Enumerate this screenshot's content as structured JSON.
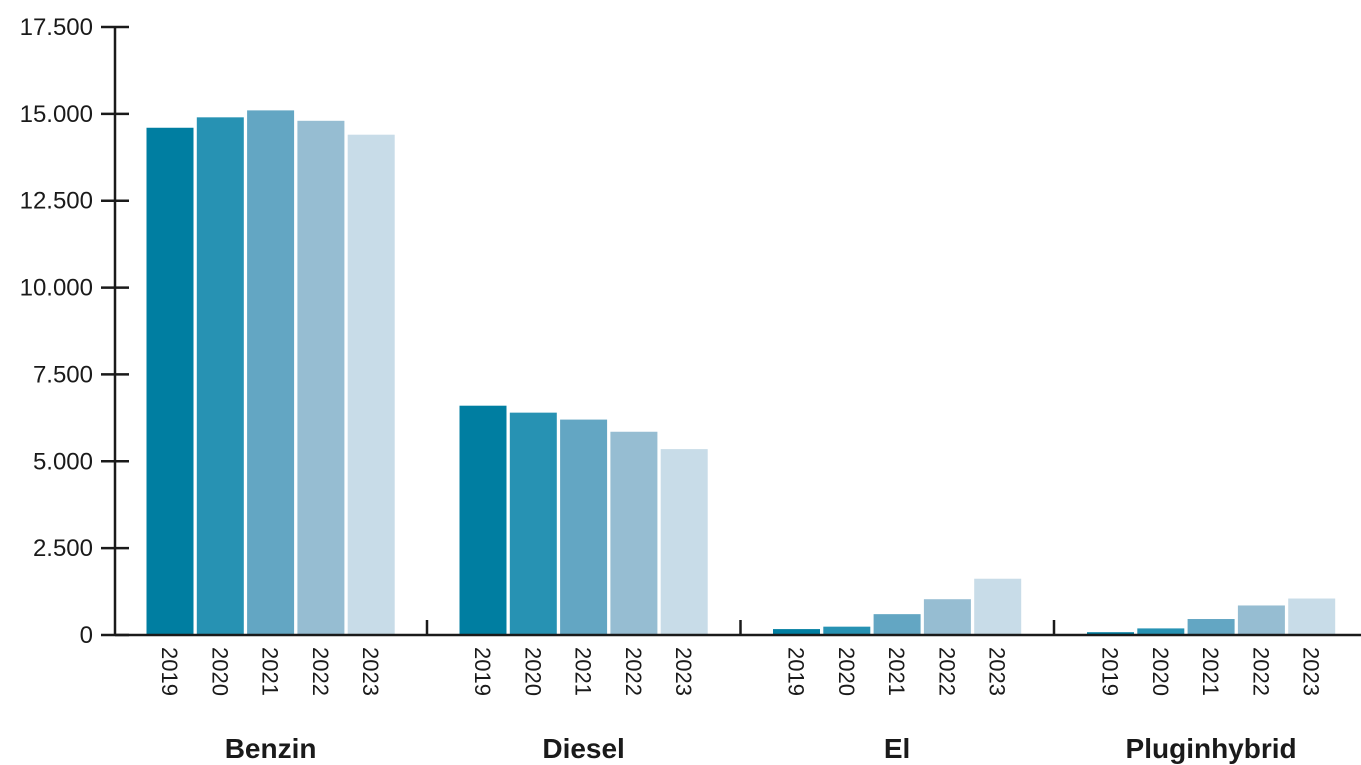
{
  "chart_data": {
    "type": "bar",
    "title": "",
    "xlabel": "",
    "ylabel": "",
    "ylim": [
      0,
      17500
    ],
    "yticks": [
      0,
      2500,
      5000,
      7500,
      10000,
      12500,
      15000,
      17500
    ],
    "ytick_labels": [
      "0",
      "2.500",
      "5.000",
      "7.500",
      "10.000",
      "12.500",
      "15.000",
      "17.500"
    ],
    "grid": false,
    "legend": "none",
    "categories": [
      "Benzin",
      "Diesel",
      "El",
      "Pluginhybrid"
    ],
    "series": [
      {
        "name": "2019",
        "color": "#007ea1",
        "values": [
          14600,
          6600,
          170,
          80
        ]
      },
      {
        "name": "2020",
        "color": "#2792b3",
        "values": [
          14900,
          6400,
          240,
          190
        ]
      },
      {
        "name": "2021",
        "color": "#63a6c3",
        "values": [
          15100,
          6200,
          600,
          460
        ]
      },
      {
        "name": "2022",
        "color": "#96bdd2",
        "values": [
          14800,
          5850,
          1030,
          850
        ]
      },
      {
        "name": "2023",
        "color": "#c8dce8",
        "values": [
          14400,
          5350,
          1620,
          1050
        ]
      }
    ]
  }
}
